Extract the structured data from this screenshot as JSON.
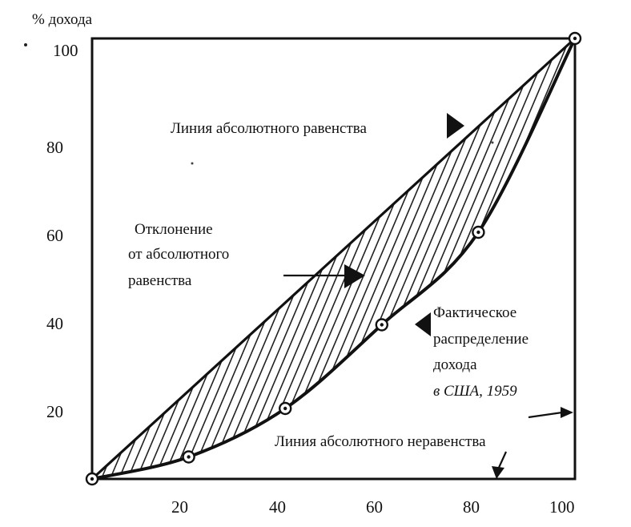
{
  "chart_data": {
    "type": "line",
    "ylabel": "% дохода",
    "xlim": [
      0,
      100
    ],
    "ylim": [
      0,
      100
    ],
    "x_ticks": [
      "20",
      "40",
      "60",
      "80",
      "100"
    ],
    "y_ticks": [
      "20",
      "40",
      "60",
      "80",
      "100"
    ],
    "series": [
      {
        "role": "equality",
        "x": [
          0,
          100
        ],
        "y": [
          0,
          100
        ]
      },
      {
        "role": "actual",
        "x": [
          0,
          20,
          40,
          60,
          80,
          100
        ],
        "y": [
          0,
          5,
          16,
          35,
          56,
          100
        ]
      }
    ],
    "annotations": {
      "equality": [
        "Линия абсолютного равенства"
      ],
      "deviation": [
        "Отклонение",
        "от абсолютного",
        "равенства"
      ],
      "actual": [
        "Фактическое",
        "распределение",
        "дохода",
        "в США, 1959"
      ],
      "inequality": [
        "Линия абсолютного неравенства"
      ]
    }
  }
}
